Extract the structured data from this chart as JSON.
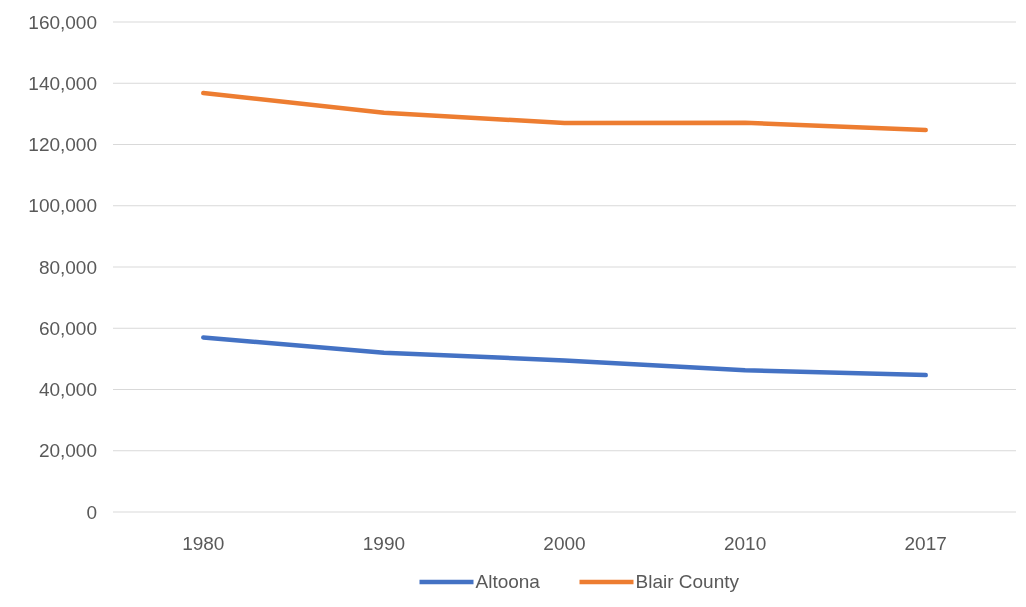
{
  "chart_data": {
    "type": "line",
    "categories": [
      "1980",
      "1990",
      "2000",
      "2010",
      "2017"
    ],
    "series": [
      {
        "name": "Altoona",
        "color": "#4472c4",
        "values": [
          57000,
          52000,
          49500,
          46300,
          44700
        ]
      },
      {
        "name": "Blair County",
        "color": "#ed7d31",
        "values": [
          136800,
          130400,
          127000,
          127100,
          124700
        ]
      }
    ],
    "ylim": [
      0,
      160000
    ],
    "yticks": [
      {
        "value": 0,
        "label": "0"
      },
      {
        "value": 20000,
        "label": "20,000"
      },
      {
        "value": 40000,
        "label": "40,000"
      },
      {
        "value": 60000,
        "label": "60,000"
      },
      {
        "value": 80000,
        "label": "80,000"
      },
      {
        "value": 100000,
        "label": "100,000"
      },
      {
        "value": 120000,
        "label": "120,000"
      },
      {
        "value": 140000,
        "label": "140,000"
      },
      {
        "value": 160000,
        "label": "160,000"
      }
    ],
    "grid": "y",
    "legend": "bottom",
    "marker": "none",
    "line_style": "solid"
  }
}
